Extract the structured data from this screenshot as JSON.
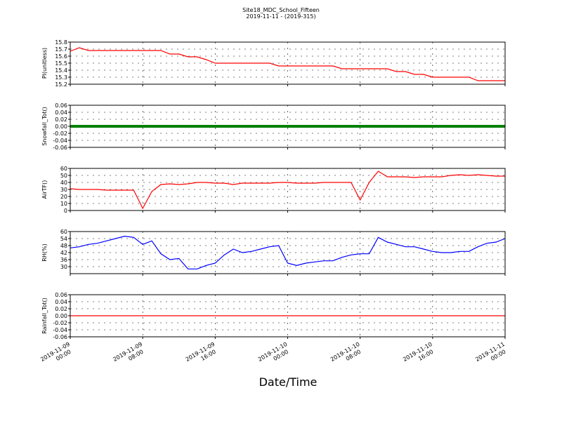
{
  "chart_data": [
    {
      "type": "line",
      "title": "Site18_MDC_School_Fifteen",
      "subtitle": "2019-11-11 - (2019-315)",
      "ylabel": "Pl(unitless)",
      "xlim": [
        "2019-11-09 00:00",
        "2019-11-11 00:00"
      ],
      "ylim": [
        15.2,
        15.8
      ],
      "yticks": [
        15.2,
        15.3,
        15.4,
        15.5,
        15.6,
        15.7,
        15.8
      ],
      "grid": true,
      "x": [
        "2019-11-09 00:00",
        "2019-11-09 01:00",
        "2019-11-09 02:00",
        "2019-11-09 03:00",
        "2019-11-09 04:00",
        "2019-11-09 05:00",
        "2019-11-09 06:00",
        "2019-11-09 07:00",
        "2019-11-09 08:00",
        "2019-11-09 09:00",
        "2019-11-09 10:00",
        "2019-11-09 11:00",
        "2019-11-09 12:00",
        "2019-11-09 13:00",
        "2019-11-09 14:00",
        "2019-11-09 15:00",
        "2019-11-09 16:00",
        "2019-11-09 17:00",
        "2019-11-09 18:00",
        "2019-11-09 19:00",
        "2019-11-09 20:00",
        "2019-11-09 21:00",
        "2019-11-09 22:00",
        "2019-11-09 23:00",
        "2019-11-10 00:00",
        "2019-11-10 01:00",
        "2019-11-10 02:00",
        "2019-11-10 03:00",
        "2019-11-10 04:00",
        "2019-11-10 05:00",
        "2019-11-10 06:00",
        "2019-11-10 07:00",
        "2019-11-10 08:00",
        "2019-11-10 09:00",
        "2019-11-10 10:00",
        "2019-11-10 11:00",
        "2019-11-10 12:00",
        "2019-11-10 13:00",
        "2019-11-10 14:00",
        "2019-11-10 15:00",
        "2019-11-10 16:00",
        "2019-11-10 17:00",
        "2019-11-10 18:00",
        "2019-11-10 19:00",
        "2019-11-10 20:00",
        "2019-11-10 21:00",
        "2019-11-10 22:00",
        "2019-11-10 23:00",
        "2019-11-11 00:00"
      ],
      "series": [
        {
          "color": "#ff0000",
          "values": [
            15.67,
            15.72,
            15.68,
            15.68,
            15.68,
            15.68,
            15.68,
            15.68,
            15.68,
            15.68,
            15.68,
            15.63,
            15.63,
            15.59,
            15.59,
            15.55,
            15.5,
            15.5,
            15.5,
            15.5,
            15.5,
            15.5,
            15.5,
            15.46,
            15.46,
            15.46,
            15.46,
            15.46,
            15.46,
            15.46,
            15.42,
            15.42,
            15.42,
            15.42,
            15.42,
            15.42,
            15.38,
            15.38,
            15.34,
            15.34,
            15.3,
            15.3,
            15.3,
            15.3,
            15.3,
            15.25,
            15.25,
            15.25,
            15.25
          ]
        }
      ]
    },
    {
      "type": "line",
      "ylabel": "Snowfall_Tot()",
      "xlim": [
        "2019-11-09 00:00",
        "2019-11-11 00:00"
      ],
      "ylim": [
        -0.06,
        0.06
      ],
      "yticks": [
        -0.06,
        -0.04,
        -0.02,
        {
          "value": 0,
          "label": "0.00"
        },
        0.02,
        0.04,
        0.06
      ],
      "grid": true,
      "marker": true,
      "x": [
        "2019-11-09 00:00",
        "2019-11-09 01:00",
        "2019-11-09 02:00",
        "2019-11-09 03:00",
        "2019-11-09 04:00",
        "2019-11-09 05:00",
        "2019-11-09 06:00",
        "2019-11-09 07:00",
        "2019-11-09 08:00",
        "2019-11-09 09:00",
        "2019-11-09 10:00",
        "2019-11-09 11:00",
        "2019-11-09 12:00",
        "2019-11-09 13:00",
        "2019-11-09 14:00",
        "2019-11-09 15:00",
        "2019-11-09 16:00",
        "2019-11-09 17:00",
        "2019-11-09 18:00",
        "2019-11-09 19:00",
        "2019-11-09 20:00",
        "2019-11-09 21:00",
        "2019-11-09 22:00",
        "2019-11-09 23:00",
        "2019-11-10 00:00",
        "2019-11-10 01:00",
        "2019-11-10 02:00",
        "2019-11-10 03:00",
        "2019-11-10 04:00",
        "2019-11-10 05:00",
        "2019-11-10 06:00",
        "2019-11-10 07:00",
        "2019-11-10 08:00",
        "2019-11-10 09:00",
        "2019-11-10 10:00",
        "2019-11-10 11:00",
        "2019-11-10 12:00",
        "2019-11-10 13:00",
        "2019-11-10 14:00",
        "2019-11-10 15:00",
        "2019-11-10 16:00",
        "2019-11-10 17:00",
        "2019-11-10 18:00",
        "2019-11-10 19:00",
        "2019-11-10 20:00",
        "2019-11-10 21:00",
        "2019-11-10 22:00",
        "2019-11-10 23:00",
        "2019-11-11 00:00"
      ],
      "series": [
        {
          "color": "#008000",
          "values": [
            0,
            0,
            0,
            0,
            0,
            0,
            0,
            0,
            0,
            0,
            0,
            0,
            0,
            0,
            0,
            0,
            0,
            0,
            0,
            0,
            0,
            0,
            0,
            0,
            0,
            0,
            0,
            0,
            0,
            0,
            0,
            0,
            0,
            0,
            0,
            0,
            0,
            0,
            0,
            0,
            0,
            0,
            0,
            0,
            0,
            0,
            0,
            0,
            0
          ]
        }
      ]
    },
    {
      "type": "line",
      "ylabel": "AirTF()",
      "xlim": [
        "2019-11-09 00:00",
        "2019-11-11 00:00"
      ],
      "ylim": [
        0,
        60
      ],
      "yticks": [
        0,
        10,
        20,
        30,
        40,
        50,
        60
      ],
      "grid": true,
      "x": [
        "2019-11-09 00:00",
        "2019-11-09 01:00",
        "2019-11-09 02:00",
        "2019-11-09 03:00",
        "2019-11-09 04:00",
        "2019-11-09 05:00",
        "2019-11-09 06:00",
        "2019-11-09 07:00",
        "2019-11-09 08:00",
        "2019-11-09 09:00",
        "2019-11-09 10:00",
        "2019-11-09 11:00",
        "2019-11-09 12:00",
        "2019-11-09 13:00",
        "2019-11-09 14:00",
        "2019-11-09 15:00",
        "2019-11-09 16:00",
        "2019-11-09 17:00",
        "2019-11-09 18:00",
        "2019-11-09 19:00",
        "2019-11-09 20:00",
        "2019-11-09 21:00",
        "2019-11-09 22:00",
        "2019-11-09 23:00",
        "2019-11-10 00:00",
        "2019-11-10 01:00",
        "2019-11-10 02:00",
        "2019-11-10 03:00",
        "2019-11-10 04:00",
        "2019-11-10 05:00",
        "2019-11-10 06:00",
        "2019-11-10 07:00",
        "2019-11-10 08:00",
        "2019-11-10 09:00",
        "2019-11-10 10:00",
        "2019-11-10 11:00",
        "2019-11-10 12:00",
        "2019-11-10 13:00",
        "2019-11-10 14:00",
        "2019-11-10 15:00",
        "2019-11-10 16:00",
        "2019-11-10 17:00",
        "2019-11-10 18:00",
        "2019-11-10 19:00",
        "2019-11-10 20:00",
        "2019-11-10 21:00",
        "2019-11-10 22:00",
        "2019-11-10 23:00",
        "2019-11-11 00:00"
      ],
      "series": [
        {
          "color": "#ff0000",
          "values": [
            31,
            30,
            30,
            30,
            29,
            29,
            29,
            29,
            3,
            27,
            37,
            38,
            37,
            38,
            40,
            40,
            39,
            39,
            37,
            39,
            39,
            39,
            39,
            40,
            40,
            39,
            39,
            39,
            40,
            40,
            40,
            40,
            15,
            40,
            56,
            48,
            48,
            48,
            47,
            48,
            48,
            48,
            50,
            51,
            50,
            51,
            50,
            49,
            49
          ]
        }
      ]
    },
    {
      "type": "line",
      "ylabel": "RH(%)",
      "xlim": [
        "2019-11-09 00:00",
        "2019-11-11 00:00"
      ],
      "ylim": [
        24,
        60
      ],
      "yticks": [
        30,
        36,
        42,
        48,
        54,
        60
      ],
      "grid": true,
      "x": [
        "2019-11-09 00:00",
        "2019-11-09 01:00",
        "2019-11-09 02:00",
        "2019-11-09 03:00",
        "2019-11-09 04:00",
        "2019-11-09 05:00",
        "2019-11-09 06:00",
        "2019-11-09 07:00",
        "2019-11-09 08:00",
        "2019-11-09 09:00",
        "2019-11-09 10:00",
        "2019-11-09 11:00",
        "2019-11-09 12:00",
        "2019-11-09 13:00",
        "2019-11-09 14:00",
        "2019-11-09 15:00",
        "2019-11-09 16:00",
        "2019-11-09 17:00",
        "2019-11-09 18:00",
        "2019-11-09 19:00",
        "2019-11-09 20:00",
        "2019-11-09 21:00",
        "2019-11-09 22:00",
        "2019-11-09 23:00",
        "2019-11-10 00:00",
        "2019-11-10 01:00",
        "2019-11-10 02:00",
        "2019-11-10 03:00",
        "2019-11-10 04:00",
        "2019-11-10 05:00",
        "2019-11-10 06:00",
        "2019-11-10 07:00",
        "2019-11-10 08:00",
        "2019-11-10 09:00",
        "2019-11-10 10:00",
        "2019-11-10 11:00",
        "2019-11-10 12:00",
        "2019-11-10 13:00",
        "2019-11-10 14:00",
        "2019-11-10 15:00",
        "2019-11-10 16:00",
        "2019-11-10 17:00",
        "2019-11-10 18:00",
        "2019-11-10 19:00",
        "2019-11-10 20:00",
        "2019-11-10 21:00",
        "2019-11-10 22:00",
        "2019-11-10 23:00",
        "2019-11-11 00:00"
      ],
      "series": [
        {
          "color": "#0000ff",
          "values": [
            46,
            47,
            49,
            50,
            52,
            54,
            56,
            55,
            49,
            52,
            41,
            36,
            37,
            28,
            28,
            31,
            33,
            40,
            45,
            42,
            43,
            45,
            47,
            48,
            33,
            31,
            33,
            34,
            35,
            35,
            38,
            40,
            41,
            41,
            55,
            51,
            49,
            47,
            47,
            45,
            43,
            42,
            42,
            43,
            43,
            47,
            50,
            51,
            54
          ]
        }
      ]
    },
    {
      "type": "line",
      "ylabel": "Rainfall_Tot()",
      "xlabel": "Date/Time",
      "xlim": [
        "2019-11-09 00:00",
        "2019-11-11 00:00"
      ],
      "ylim": [
        -0.06,
        0.06
      ],
      "yticks": [
        -0.06,
        -0.04,
        -0.02,
        {
          "value": 0,
          "label": "0.00"
        },
        0.02,
        0.04,
        0.06
      ],
      "grid": true,
      "xticks": [
        "2019-11-09 00:00",
        "2019-11-09 08:00",
        "2019-11-09 16:00",
        "2019-11-10 00:00",
        "2019-11-10 08:00",
        "2019-11-10 16:00",
        "2019-11-11 00:00"
      ],
      "x": [
        "2019-11-09 00:00",
        "2019-11-09 01:00",
        "2019-11-09 02:00",
        "2019-11-09 03:00",
        "2019-11-09 04:00",
        "2019-11-09 05:00",
        "2019-11-09 06:00",
        "2019-11-09 07:00",
        "2019-11-09 08:00",
        "2019-11-09 09:00",
        "2019-11-09 10:00",
        "2019-11-09 11:00",
        "2019-11-09 12:00",
        "2019-11-09 13:00",
        "2019-11-09 14:00",
        "2019-11-09 15:00",
        "2019-11-09 16:00",
        "2019-11-09 17:00",
        "2019-11-09 18:00",
        "2019-11-09 19:00",
        "2019-11-09 20:00",
        "2019-11-09 21:00",
        "2019-11-09 22:00",
        "2019-11-09 23:00",
        "2019-11-10 00:00",
        "2019-11-10 01:00",
        "2019-11-10 02:00",
        "2019-11-10 03:00",
        "2019-11-10 04:00",
        "2019-11-10 05:00",
        "2019-11-10 06:00",
        "2019-11-10 07:00",
        "2019-11-10 08:00",
        "2019-11-10 09:00",
        "2019-11-10 10:00",
        "2019-11-10 11:00",
        "2019-11-10 12:00",
        "2019-11-10 13:00",
        "2019-11-10 14:00",
        "2019-11-10 15:00",
        "2019-11-10 16:00",
        "2019-11-10 17:00",
        "2019-11-10 18:00",
        "2019-11-10 19:00",
        "2019-11-10 20:00",
        "2019-11-10 21:00",
        "2019-11-10 22:00",
        "2019-11-10 23:00",
        "2019-11-11 00:00"
      ],
      "series": [
        {
          "color": "#ff0000",
          "values": [
            0,
            0,
            0,
            0,
            0,
            0,
            0,
            0,
            0,
            0,
            0,
            0,
            0,
            0,
            0,
            0,
            0,
            0,
            0,
            0,
            0,
            0,
            0,
            0,
            0,
            0,
            0,
            0,
            0,
            0,
            0,
            0,
            0,
            0,
            0,
            0,
            0,
            0,
            0,
            0,
            0,
            0,
            0,
            0,
            0,
            0,
            0,
            0,
            0
          ]
        }
      ]
    }
  ]
}
